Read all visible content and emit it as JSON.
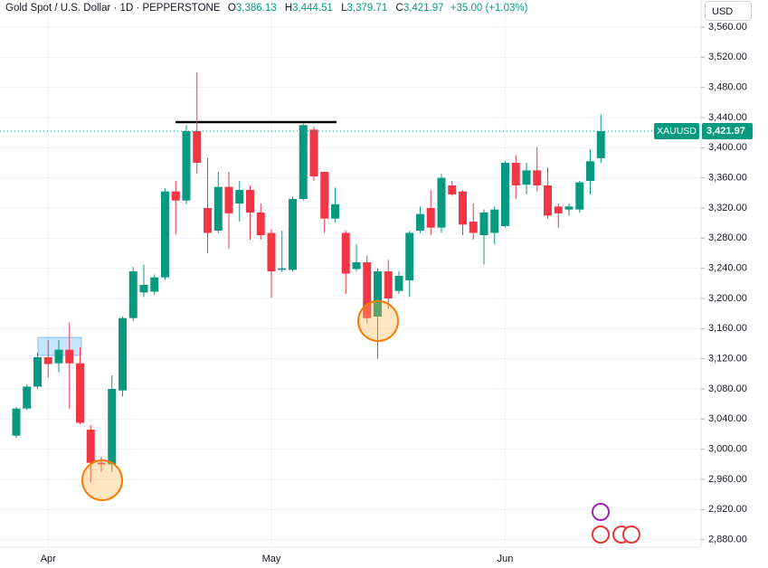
{
  "header": {
    "symbol": "Gold Spot / U.S. Dollar · 1D · PEPPERSTONE",
    "ohlc": [
      {
        "key": "O",
        "value": "3,386.13"
      },
      {
        "key": "H",
        "value": "3,444.51"
      },
      {
        "key": "L",
        "value": "3,379.71"
      },
      {
        "key": "C",
        "value": "3,421.97"
      }
    ],
    "change": "+35.00 (+1.03%)",
    "currency": "USD"
  },
  "chart_data": {
    "type": "candlestick",
    "ticker": "XAUUSD",
    "last_price": {
      "value": 3421.97,
      "label": "3,421.97"
    },
    "up_color": "#089981",
    "down_color": "#f23645",
    "grid": true,
    "categories": [
      null,
      null,
      null,
      "Apr",
      null,
      null,
      null,
      null,
      null,
      null,
      null,
      null,
      null,
      null,
      null,
      null,
      null,
      null,
      null,
      null,
      null,
      null,
      null,
      null,
      "May",
      null,
      null,
      null,
      null,
      null,
      null,
      null,
      null,
      null,
      null,
      null,
      null,
      null,
      null,
      null,
      null,
      null,
      null,
      null,
      null,
      null,
      "Jun",
      null,
      null,
      null,
      null,
      null,
      null,
      null,
      null,
      null
    ],
    "open": [
      3018,
      3054,
      3083,
      3122,
      3114,
      3132,
      3114,
      3026,
      2982,
      2980,
      3078,
      3174,
      3208,
      3209,
      3228,
      3342,
      3330,
      3422,
      3320,
      3290,
      3348,
      3326,
      3344,
      3314,
      3287,
      3238,
      3238,
      3332,
      3424,
      3368,
      3306,
      3287,
      3239,
      3248,
      3176,
      3236,
      3210,
      3224,
      3290,
      3320,
      3294,
      3350,
      3342,
      3302,
      3284,
      3287,
      3296,
      3380,
      3351,
      3370,
      3350,
      3322,
      3318,
      3318,
      3356,
      3386.13
    ],
    "high": [
      3056,
      3086,
      3128,
      3145,
      3145,
      3168,
      3135,
      3032,
      2990,
      3098,
      3176,
      3242,
      3245,
      3232,
      3346,
      3356,
      3430,
      3500,
      3386,
      3368,
      3368,
      3356,
      3350,
      3326,
      3292,
      3290,
      3335,
      3432,
      3428,
      3368,
      3347,
      3290,
      3272,
      3257,
      3240,
      3251,
      3236,
      3290,
      3322,
      3344,
      3365,
      3356,
      3344,
      3326,
      3318,
      3322,
      3382,
      3390,
      3380,
      3401,
      3374,
      3326,
      3326,
      3356,
      3398,
      3444.51
    ],
    "low": [
      3015,
      3052,
      3080,
      3095,
      3102,
      3054,
      3033,
      2956,
      2970,
      2970,
      3070,
      3170,
      3202,
      3205,
      3225,
      3285,
      3325,
      3366,
      3260,
      3287,
      3266,
      3302,
      3278,
      3278,
      3201,
      3235,
      3236,
      3330,
      3356,
      3287,
      3301,
      3206,
      3236,
      3167,
      3120,
      3186,
      3206,
      3202,
      3287,
      3284,
      3287,
      3336,
      3284,
      3278,
      3245,
      3272,
      3294,
      3332,
      3338,
      3342,
      3306,
      3294,
      3310,
      3314,
      3338,
      3379.71
    ],
    "close": [
      3054,
      3083,
      3122,
      3113,
      3132,
      3114,
      3035,
      2982,
      2980,
      3080,
      3174,
      3236,
      3218,
      3228,
      3342,
      3330,
      3422,
      3380,
      3287,
      3348,
      3313,
      3344,
      3314,
      3284,
      3236,
      3240,
      3332,
      3430,
      3362,
      3306,
      3325,
      3233,
      3248,
      3174,
      3236,
      3200,
      3230,
      3287,
      3312,
      3294,
      3360,
      3338,
      3298,
      3287,
      3314,
      3318,
      3380,
      3350,
      3370,
      3350,
      3310,
      3313,
      3322,
      3354,
      3382,
      3421.97
    ],
    "ylim": [
      2870,
      3596
    ],
    "yticks": [
      {
        "value": 2880,
        "label": "2,880.00"
      },
      {
        "value": 2920,
        "label": "2,920.00"
      },
      {
        "value": 2960,
        "label": "2,960.00"
      },
      {
        "value": 3000,
        "label": "3,000.00"
      },
      {
        "value": 3040,
        "label": "3,040.00"
      },
      {
        "value": 3080,
        "label": "3,080.00"
      },
      {
        "value": 3120,
        "label": "3,120.00"
      },
      {
        "value": 3160,
        "label": "3,160.00"
      },
      {
        "value": 3200,
        "label": "3,200.00"
      },
      {
        "value": 3240,
        "label": "3,240.00"
      },
      {
        "value": 3280,
        "label": "3,280.00"
      },
      {
        "value": 3320,
        "label": "3,320.00"
      },
      {
        "value": 3360,
        "label": "3,360.00"
      },
      {
        "value": 3400,
        "label": "3,400.00"
      },
      {
        "value": 3440,
        "label": "3,440.00"
      },
      {
        "value": 3480,
        "label": "3,480.00"
      },
      {
        "value": 3520,
        "label": "3,520.00"
      },
      {
        "value": 3560,
        "label": "3,560.00"
      }
    ]
  }
}
